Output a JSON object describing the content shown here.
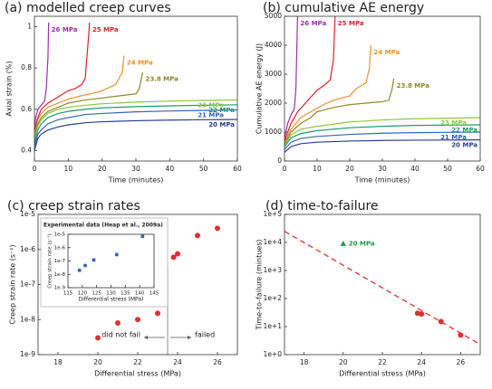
{
  "chart_data": [
    {
      "type": "line",
      "title": "(a) modelled creep curves",
      "xlabel": "Time (minutes)",
      "ylabel": "Axial strain (%)",
      "xlim": [
        0,
        60
      ],
      "xticks": [
        0,
        10,
        20,
        30,
        40,
        50,
        60
      ],
      "ylim": [
        0.35,
        1.05
      ],
      "yticks": [
        0.4,
        0.6,
        0.8,
        1
      ],
      "series": [
        {
          "name": "20 MPa",
          "color": "#2b3f8f",
          "x": [
            0,
            1,
            2,
            4,
            7,
            10,
            15,
            20,
            30,
            40,
            50,
            60
          ],
          "values": [
            0.4,
            0.46,
            0.48,
            0.5,
            0.515,
            0.525,
            0.535,
            0.54,
            0.545,
            0.548,
            0.55,
            0.551
          ]
        },
        {
          "name": "21 MPa",
          "color": "#3366b5",
          "x": [
            0,
            1,
            2,
            4,
            7,
            10,
            15,
            20,
            30,
            40,
            50,
            60
          ],
          "values": [
            0.42,
            0.48,
            0.5,
            0.53,
            0.55,
            0.56,
            0.575,
            0.58,
            0.588,
            0.592,
            0.595,
            0.597
          ]
        },
        {
          "name": "22 MPa",
          "color": "#1f9a6a",
          "x": [
            0,
            1,
            2,
            4,
            7,
            10,
            15,
            20,
            30,
            40,
            50,
            60
          ],
          "values": [
            0.44,
            0.5,
            0.53,
            0.56,
            0.58,
            0.59,
            0.6,
            0.607,
            0.613,
            0.617,
            0.62,
            0.622
          ]
        },
        {
          "name": "23 MPa",
          "color": "#8dc63f",
          "x": [
            0,
            1,
            2,
            4,
            7,
            10,
            15,
            20,
            30,
            40,
            50,
            60
          ],
          "values": [
            0.46,
            0.52,
            0.55,
            0.58,
            0.6,
            0.61,
            0.62,
            0.627,
            0.635,
            0.64,
            0.643,
            0.645
          ]
        },
        {
          "name": "23.8 MPa",
          "color": "#8a8a2a",
          "x": [
            0,
            1,
            2,
            4,
            7,
            10,
            15,
            20,
            25,
            30,
            31,
            32
          ],
          "values": [
            0.48,
            0.53,
            0.56,
            0.59,
            0.61,
            0.63,
            0.645,
            0.655,
            0.665,
            0.675,
            0.7,
            0.78
          ]
        },
        {
          "name": "24 MPa",
          "color": "#f0902a",
          "x": [
            0,
            1,
            2,
            4,
            7,
            10,
            15,
            18,
            20,
            24,
            26,
            26.5
          ],
          "values": [
            0.49,
            0.55,
            0.58,
            0.61,
            0.63,
            0.65,
            0.67,
            0.68,
            0.69,
            0.72,
            0.78,
            0.86
          ]
        },
        {
          "name": "25 MPa",
          "color": "#e0202a",
          "x": [
            0,
            1,
            2,
            4,
            7,
            10,
            12,
            14,
            15,
            15.5,
            16,
            16.3
          ],
          "values": [
            0.5,
            0.56,
            0.6,
            0.63,
            0.66,
            0.69,
            0.7,
            0.72,
            0.75,
            0.85,
            0.95,
            1.02
          ]
        },
        {
          "name": "26 MPa",
          "color": "#9b2fae",
          "x": [
            0,
            0.5,
            1,
            2,
            3,
            3.5,
            4,
            4.2
          ],
          "values": [
            0.52,
            0.57,
            0.6,
            0.62,
            0.64,
            0.7,
            0.85,
            1.02
          ]
        }
      ]
    },
    {
      "type": "line",
      "title": "(b) cumulative AE energy",
      "xlabel": "Time (minutes)",
      "ylabel": "Cumulative AE energy (J)",
      "xlim": [
        0,
        60
      ],
      "xticks": [
        0,
        10,
        20,
        30,
        40,
        50,
        60
      ],
      "ylim": [
        0,
        5000
      ],
      "yticks": [
        0,
        1000,
        2000,
        3000,
        4000,
        5000
      ],
      "series": [
        {
          "name": "20 MPa",
          "color": "#2b3f8f",
          "x": [
            0,
            2,
            5,
            10,
            20,
            30,
            40,
            50,
            60
          ],
          "values": [
            300,
            500,
            600,
            650,
            690,
            710,
            720,
            725,
            730
          ]
        },
        {
          "name": "21 MPa",
          "color": "#3366b5",
          "x": [
            0,
            2,
            5,
            10,
            20,
            30,
            40,
            50,
            60
          ],
          "values": [
            400,
            650,
            780,
            850,
            920,
            960,
            980,
            990,
            1000
          ]
        },
        {
          "name": "22 MPa",
          "color": "#1f9a6a",
          "x": [
            0,
            2,
            5,
            10,
            20,
            30,
            40,
            50,
            60
          ],
          "values": [
            500,
            800,
            950,
            1050,
            1150,
            1200,
            1230,
            1240,
            1250
          ]
        },
        {
          "name": "23 MPa",
          "color": "#8dc63f",
          "x": [
            0,
            2,
            5,
            10,
            20,
            30,
            40,
            50,
            60
          ],
          "values": [
            550,
            900,
            1100,
            1200,
            1350,
            1420,
            1460,
            1480,
            1500
          ]
        },
        {
          "name": "23.8 MPa",
          "color": "#8a8a2a",
          "x": [
            0,
            2,
            5,
            8,
            10,
            15,
            20,
            25,
            30,
            32,
            33,
            33.5
          ],
          "values": [
            600,
            1000,
            1300,
            1500,
            1700,
            1850,
            1950,
            2000,
            2050,
            2100,
            2500,
            2850
          ]
        },
        {
          "name": "24 MPa",
          "color": "#f0902a",
          "x": [
            0,
            2,
            5,
            8,
            12,
            15,
            20,
            22,
            25,
            26,
            26.5
          ],
          "values": [
            650,
            1100,
            1500,
            1700,
            1950,
            2100,
            2250,
            2500,
            2700,
            3200,
            4000
          ]
        },
        {
          "name": "25 MPa",
          "color": "#e0202a",
          "x": [
            0,
            2,
            4,
            6,
            8,
            10,
            12,
            14,
            15,
            15.5
          ],
          "values": [
            700,
            1300,
            1700,
            1950,
            2200,
            2450,
            2600,
            2800,
            3500,
            5000
          ]
        },
        {
          "name": "26 MPa",
          "color": "#9b2fae",
          "x": [
            0,
            1,
            2,
            3,
            3.5,
            4
          ],
          "values": [
            800,
            1300,
            1600,
            1800,
            2500,
            5000
          ]
        }
      ]
    },
    {
      "type": "scatter",
      "title": "(c) creep strain rates",
      "xlabel": "Differential stress (MPa)",
      "ylabel": "Creep strain rate (s⁻¹)",
      "xlim": [
        17,
        27
      ],
      "xticks": [
        18,
        20,
        22,
        24,
        26
      ],
      "log_y": true,
      "ylim": [
        1e-09,
        1e-05
      ],
      "yticks": [
        {
          "value": 1e-09,
          "label": "1e-9"
        },
        {
          "value": 1e-08,
          "label": "1e-8"
        },
        {
          "value": 1e-07,
          "label": "1e-7"
        },
        {
          "value": 1e-06,
          "label": "1e-6"
        },
        {
          "value": 1e-05,
          "label": "1e-5"
        }
      ],
      "series": [
        {
          "color": "#e03030",
          "x": [
            20,
            21,
            22,
            23,
            23.8,
            24,
            25,
            26
          ],
          "values": [
            3e-09,
            8e-09,
            1e-08,
            1.5e-08,
            6e-07,
            7.5e-07,
            2.5e-06,
            4e-06
          ]
        }
      ],
      "vline": 23.5,
      "annotations": [
        "did not fail",
        "failed"
      ],
      "inset": {
        "type": "scatter",
        "title": "Experimental data (Heap et al., 2009a)",
        "xlabel": "Differential stress (MPa)",
        "ylabel": "Creep strain rate (s⁻¹)",
        "xlim": [
          115,
          145
        ],
        "xticks": [
          115,
          120,
          125,
          130,
          135,
          140,
          145
        ],
        "log_y": true,
        "ylim": [
          1e-09,
          1e-05
        ],
        "yticks": [
          {
            "value": 1e-09,
            "label": "1e-9"
          },
          {
            "value": 1e-08,
            "label": "1e-8"
          },
          {
            "value": 1e-07,
            "label": "1e-7"
          },
          {
            "value": 1e-06,
            "label": "1e-6"
          },
          {
            "value": 1e-05,
            "label": "1e-5"
          }
        ],
        "series": [
          {
            "color": "#3b5fc0",
            "x": [
              119,
              121,
              124,
              132,
              141
            ],
            "values": [
              2e-08,
              4.6e-08,
              1.2e-07,
              3e-07,
              7e-06
            ]
          }
        ]
      }
    },
    {
      "type": "scatter",
      "title": "(d) time-to-failure",
      "xlabel": "Differential stress (MPa)",
      "ylabel": "Time-to-failure (mintues)",
      "xlim": [
        17,
        27
      ],
      "xticks": [
        18,
        20,
        22,
        24,
        26
      ],
      "log_y": true,
      "ylim": [
        1,
        100000
      ],
      "yticks": [
        {
          "value": 1,
          "label": "1e+0"
        },
        {
          "value": 10,
          "label": "1e+1"
        },
        {
          "value": 100,
          "label": "1e+2"
        },
        {
          "value": 1000,
          "label": "1e+3"
        },
        {
          "value": 10000,
          "label": "1e+4"
        },
        {
          "value": 100000,
          "label": "1e+5"
        }
      ],
      "series": [
        {
          "color": "#e03030",
          "x": [
            23.8,
            24,
            25,
            26
          ],
          "values": [
            30,
            28,
            15,
            5
          ]
        },
        {
          "name": "20 MPa",
          "color": "#1f9a4a",
          "marker": "triangle",
          "x": [
            20
          ],
          "values": [
            9000
          ]
        }
      ],
      "fit": {
        "color": "#e03030",
        "x": [
          17,
          27
        ],
        "values": [
          25000,
          2.3
        ]
      }
    }
  ]
}
